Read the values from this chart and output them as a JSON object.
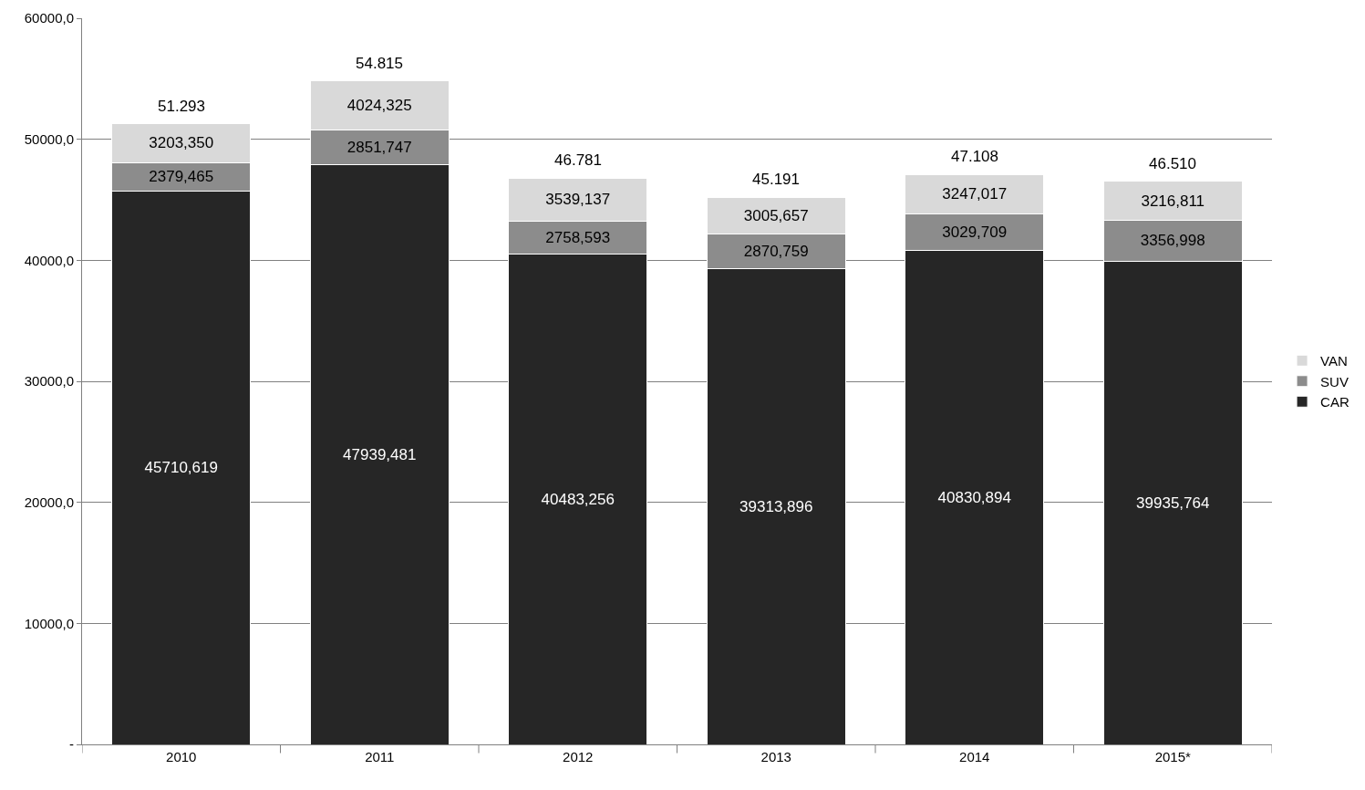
{
  "chart_data": {
    "type": "bar",
    "stacked": true,
    "categories": [
      "2010",
      "2011",
      "2012",
      "2013",
      "2014",
      "2015*"
    ],
    "series": [
      {
        "name": "CAR",
        "color": "#262626",
        "values": [
          45710.619,
          47939.481,
          40483.256,
          39313.896,
          40830.894,
          39935.764
        ],
        "value_labels": [
          "45710,619",
          "47939,481",
          "40483,256",
          "39313,896",
          "40830,894",
          "39935,764"
        ]
      },
      {
        "name": "SUV",
        "color": "#8c8c8c",
        "values": [
          2379.465,
          2851.747,
          2758.593,
          2870.759,
          3029.709,
          3356.998
        ],
        "value_labels": [
          "2379,465",
          "2851,747",
          "2758,593",
          "2870,759",
          "3029,709",
          "3356,998"
        ]
      },
      {
        "name": "VAN",
        "color": "#d9d9d9",
        "values": [
          3203.35,
          4024.325,
          3539.137,
          3005.657,
          3247.017,
          3216.811
        ],
        "value_labels": [
          "3203,350",
          "4024,325",
          "3539,137",
          "3005,657",
          "3247,017",
          "3216,811"
        ]
      }
    ],
    "totals": [
      "51.293",
      "54.815",
      "46.781",
      "45.191",
      "47.108",
      "46.510"
    ],
    "ylim": [
      0,
      60000
    ],
    "yticks": [
      {
        "value": 0,
        "label": "-"
      },
      {
        "value": 10000,
        "label": "10000,0"
      },
      {
        "value": 20000,
        "label": "20000,0"
      },
      {
        "value": 30000,
        "label": "30000,0"
      },
      {
        "value": 40000,
        "label": "40000,0"
      },
      {
        "value": 50000,
        "label": "50000,0"
      },
      {
        "value": 60000,
        "label": "60000,0"
      }
    ],
    "grid": "y",
    "legend": "right"
  }
}
